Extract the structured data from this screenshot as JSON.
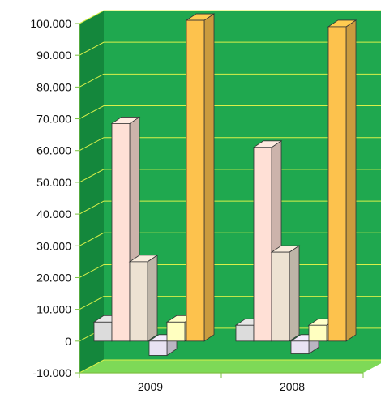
{
  "chart_data": {
    "type": "bar",
    "categories": [
      "2009",
      "2008"
    ],
    "series": [
      {
        "values": [
          6000,
          5000
        ],
        "color": "#dcdcdc"
      },
      {
        "values": [
          68500,
          61000
        ],
        "color": "#ffe0d6"
      },
      {
        "values": [
          25000,
          28000
        ],
        "color": "#ede2d2"
      },
      {
        "values": [
          -4500,
          -4000
        ],
        "color": "#e8e2f2"
      },
      {
        "values": [
          6000,
          5000
        ],
        "color": "#ffffc0"
      },
      {
        "values": [
          101000,
          99000
        ],
        "color": "#fdc24d"
      }
    ],
    "y_ticks": [
      "100.000",
      "90.000",
      "80.000",
      "70.000",
      "60.000",
      "50.000",
      "40.000",
      "30.000",
      "20.000",
      "10.000",
      "0",
      "-10.000"
    ],
    "ylim": [
      -10000,
      100000
    ],
    "grid": true,
    "legend": "none",
    "colors": {
      "wall": "#1fa84f",
      "wall_side": "#14873c",
      "floor": "#7ed957",
      "gridline": "#d8f04a",
      "axis": "#7dc242"
    }
  }
}
